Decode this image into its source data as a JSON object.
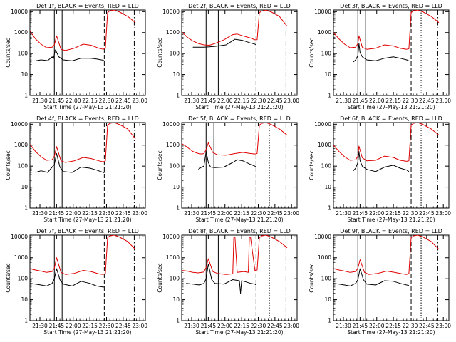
{
  "page": {
    "background": "#ffffff"
  },
  "colors": {
    "events": "#000000",
    "lld": "#e00000",
    "axes": "#000000"
  },
  "shared": {
    "xlabel": "Start Time (27-May-13 21:21:20)",
    "ylabel": "Counts/sec",
    "x_tick_labels": [
      "21:30",
      "21:45",
      "22:00",
      "22:15",
      "22:30",
      "22:45",
      "23:00"
    ],
    "x_ticks_min": [
      9,
      24,
      39,
      54,
      69,
      84,
      99
    ],
    "xlim_min": [
      0,
      104
    ],
    "y_tick_labels": [
      "1",
      "10",
      "100",
      "1000",
      "10000"
    ],
    "y_ticks": [
      1,
      10,
      100,
      1000,
      10000
    ],
    "ylim": [
      1,
      12000
    ],
    "y_scale": "log"
  },
  "chart_data": [
    {
      "type": "line",
      "title": "Det 1f, BLACK = Events, RED = LLD",
      "vlines": [
        {
          "x": 22,
          "style": "solid"
        },
        {
          "x": 29,
          "style": "solid"
        },
        {
          "x": 67,
          "style": "dashed"
        },
        {
          "x": 94,
          "style": "dashdot"
        }
      ],
      "series": [
        {
          "name": "BLACK = Events",
          "color": "#000000",
          "x": [
            5,
            10,
            13,
            16,
            20,
            21,
            23,
            26,
            30,
            38,
            46,
            54,
            60,
            66,
            67,
            69,
            72,
            76,
            81,
            88,
            95
          ],
          "y": [
            45,
            50,
            48,
            46,
            70,
            55,
            150,
            70,
            50,
            45,
            60,
            60,
            55,
            48,
            45,
            null,
            null,
            null,
            null,
            null,
            null
          ]
        },
        {
          "name": "RED = LLD",
          "color": "#e00000",
          "x": [
            0,
            5,
            10,
            15,
            20,
            22,
            24,
            28,
            32,
            40,
            48,
            55,
            62,
            66,
            68,
            70,
            72,
            76,
            81,
            88,
            95
          ],
          "y": [
            1200,
            500,
            280,
            190,
            200,
            260,
            700,
            160,
            140,
            180,
            280,
            250,
            180,
            160,
            180,
            9000,
            11000,
            12000,
            9500,
            6000,
            3000
          ]
        }
      ]
    },
    {
      "type": "line",
      "title": "Det 2f, BLACK = Events, RED = LLD",
      "vlines": [
        {
          "x": 22,
          "style": "solid"
        },
        {
          "x": 33,
          "style": "solid"
        },
        {
          "x": 67,
          "style": "dashed"
        },
        {
          "x": 94,
          "style": "dashdot"
        }
      ],
      "series": [
        {
          "name": "BLACK = Events",
          "color": "#000000",
          "x": [
            10,
            20,
            25,
            30,
            40,
            48,
            55,
            62,
            66,
            67,
            69,
            72,
            76,
            81,
            88,
            95
          ],
          "y": [
            200,
            200,
            210,
            220,
            260,
            480,
            420,
            320,
            280,
            260,
            null,
            null,
            null,
            null,
            null,
            null
          ]
        },
        {
          "name": "RED = LLD",
          "color": "#e00000",
          "x": [
            0,
            5,
            10,
            15,
            20,
            25,
            30,
            38,
            46,
            50,
            55,
            62,
            66,
            68,
            70,
            72,
            76,
            81,
            88,
            95
          ],
          "y": [
            1100,
            600,
            400,
            300,
            260,
            250,
            300,
            450,
            800,
            850,
            700,
            550,
            450,
            460,
            9000,
            10500,
            12000,
            9500,
            6000,
            2000
          ]
        }
      ]
    },
    {
      "type": "line",
      "title": "Det 3f, BLACK = Events, RED = LLD",
      "vlines": [
        {
          "x": 22,
          "style": "solid"
        },
        {
          "x": 29,
          "style": "solid"
        },
        {
          "x": 70,
          "style": "dashed"
        },
        {
          "x": 79,
          "style": "dotted"
        },
        {
          "x": 94,
          "style": "dashdot"
        }
      ],
      "series": [
        {
          "name": "BLACK = Events",
          "color": "#000000",
          "x": [
            18,
            20,
            22,
            23,
            24,
            26,
            30,
            38,
            46,
            54,
            60,
            66,
            68,
            70,
            72,
            76,
            81,
            88,
            95
          ],
          "y": [
            40,
            50,
            80,
            300,
            110,
            70,
            50,
            45,
            60,
            70,
            60,
            50,
            45,
            null,
            null,
            null,
            null,
            null,
            null
          ]
        },
        {
          "name": "RED = LLD",
          "color": "#e00000",
          "x": [
            0,
            5,
            10,
            15,
            20,
            22,
            23,
            26,
            30,
            38,
            46,
            54,
            60,
            66,
            68,
            70,
            72,
            76,
            81,
            88,
            95
          ],
          "y": [
            1000,
            500,
            280,
            190,
            200,
            300,
            700,
            200,
            160,
            180,
            260,
            230,
            180,
            160,
            170,
            9000,
            11000,
            12000,
            9500,
            6000,
            3000
          ]
        }
      ]
    },
    {
      "type": "line",
      "title": "Det 4f, BLACK = Events, RED = LLD",
      "vlines": [
        {
          "x": 22,
          "style": "solid"
        },
        {
          "x": 29,
          "style": "solid"
        },
        {
          "x": 67,
          "style": "dashed"
        },
        {
          "x": 94,
          "style": "dashdot"
        }
      ],
      "series": [
        {
          "name": "BLACK = Events",
          "color": "#000000",
          "x": [
            5,
            10,
            13,
            16,
            20,
            22,
            24,
            27,
            30,
            38,
            46,
            54,
            60,
            66,
            67,
            69,
            72,
            76,
            81,
            88,
            95
          ],
          "y": [
            50,
            60,
            55,
            50,
            90,
            120,
            400,
            90,
            55,
            50,
            90,
            80,
            65,
            50,
            48,
            null,
            null,
            null,
            null,
            null,
            null
          ]
        },
        {
          "name": "RED = LLD",
          "color": "#e00000",
          "x": [
            0,
            5,
            10,
            15,
            20,
            22,
            24,
            28,
            32,
            40,
            48,
            55,
            62,
            66,
            68,
            70,
            72,
            76,
            81,
            88,
            95
          ],
          "y": [
            1100,
            500,
            280,
            190,
            200,
            300,
            850,
            180,
            150,
            180,
            260,
            230,
            180,
            160,
            180,
            9000,
            11000,
            12000,
            9500,
            6000,
            2000
          ]
        }
      ]
    },
    {
      "type": "line",
      "title": "Det 5f, BLACK = Events, RED = LLD",
      "vlines": [
        {
          "x": 22,
          "style": "solid"
        },
        {
          "x": 29,
          "style": "solid"
        },
        {
          "x": 67,
          "style": "dashed"
        },
        {
          "x": 79,
          "style": "dotted"
        },
        {
          "x": 94,
          "style": "dashdot"
        }
      ],
      "series": [
        {
          "name": "BLACK = Events",
          "color": "#000000",
          "x": [
            15,
            18,
            20,
            22,
            24,
            26,
            30,
            38,
            46,
            50,
            55,
            62,
            66,
            67,
            69,
            72,
            76,
            81,
            88,
            95
          ],
          "y": [
            70,
            90,
            100,
            500,
            150,
            90,
            85,
            90,
            150,
            200,
            180,
            120,
            100,
            90,
            null,
            null,
            null,
            null,
            null,
            null
          ]
        },
        {
          "name": "RED = LLD",
          "color": "#e00000",
          "x": [
            0,
            5,
            10,
            15,
            18,
            20,
            22,
            24,
            28,
            32,
            40,
            48,
            55,
            62,
            66,
            68,
            70,
            72,
            76,
            81,
            88,
            95
          ],
          "y": [
            1200,
            800,
            500,
            400,
            380,
            400,
            600,
            1300,
            450,
            350,
            330,
            400,
            450,
            400,
            380,
            400,
            9000,
            11000,
            12000,
            9500,
            6000,
            3000
          ]
        }
      ]
    },
    {
      "type": "line",
      "title": "Det 6f, BLACK = Events, RED = LLD",
      "vlines": [
        {
          "x": 22,
          "style": "solid"
        },
        {
          "x": 29,
          "style": "solid"
        },
        {
          "x": 70,
          "style": "dashed"
        },
        {
          "x": 79,
          "style": "dotted"
        },
        {
          "x": 94,
          "style": "dashdot"
        }
      ],
      "series": [
        {
          "name": "BLACK = Events",
          "color": "#000000",
          "x": [
            18,
            20,
            22,
            23,
            24,
            26,
            30,
            38,
            46,
            54,
            60,
            66,
            68,
            70,
            72,
            76,
            81,
            88,
            95
          ],
          "y": [
            60,
            80,
            150,
            500,
            180,
            100,
            70,
            55,
            90,
            110,
            80,
            65,
            55,
            null,
            null,
            null,
            null,
            null,
            null
          ]
        },
        {
          "name": "RED = LLD",
          "color": "#e00000",
          "x": [
            0,
            5,
            10,
            15,
            20,
            22,
            23,
            26,
            30,
            38,
            46,
            54,
            60,
            66,
            68,
            70,
            72,
            76,
            81,
            88,
            95
          ],
          "y": [
            1000,
            500,
            280,
            190,
            200,
            300,
            900,
            250,
            180,
            190,
            300,
            260,
            190,
            170,
            180,
            9000,
            11000,
            12000,
            9500,
            6000,
            3000
          ]
        }
      ]
    },
    {
      "type": "line",
      "title": "Det 7f, BLACK = Events, RED = LLD",
      "vlines": [
        {
          "x": 22,
          "style": "solid"
        },
        {
          "x": 29,
          "style": "solid"
        },
        {
          "x": 67,
          "style": "dashed"
        },
        {
          "x": 94,
          "style": "dashdot"
        }
      ],
      "series": [
        {
          "name": "BLACK = Events",
          "color": "#000000",
          "x": [
            0,
            5,
            10,
            15,
            20,
            22,
            24,
            27,
            30,
            38,
            46,
            54,
            60,
            66,
            67,
            69,
            72,
            76,
            81,
            88,
            95
          ],
          "y": [
            60,
            55,
            50,
            45,
            60,
            100,
            300,
            90,
            55,
            45,
            75,
            60,
            45,
            40,
            40,
            null,
            null,
            null,
            null,
            null,
            null
          ]
        },
        {
          "name": "RED = LLD",
          "color": "#e00000",
          "x": [
            0,
            5,
            10,
            15,
            20,
            22,
            24,
            28,
            32,
            40,
            48,
            55,
            62,
            66,
            68,
            70,
            72,
            76,
            81,
            88,
            95
          ],
          "y": [
            300,
            260,
            230,
            200,
            220,
            320,
            1000,
            200,
            160,
            180,
            250,
            220,
            170,
            160,
            180,
            9000,
            11000,
            12000,
            9500,
            6000,
            2500
          ]
        }
      ]
    },
    {
      "type": "line",
      "title": "Det 8f, BLACK = Events, RED = LLD",
      "vlines": [
        {
          "x": 22,
          "style": "solid"
        },
        {
          "x": 33,
          "style": "solid"
        },
        {
          "x": 67,
          "style": "dashed"
        },
        {
          "x": 79,
          "style": "dotted"
        },
        {
          "x": 94,
          "style": "dashdot"
        }
      ],
      "series": [
        {
          "name": "BLACK = Events",
          "color": "#000000",
          "x": [
            4,
            10,
            16,
            20,
            22,
            24,
            27,
            30,
            38,
            46,
            52,
            53,
            54,
            58,
            62,
            66,
            67,
            69,
            72,
            76,
            81,
            88,
            95
          ],
          "y": [
            60,
            55,
            50,
            60,
            100,
            500,
            90,
            60,
            55,
            90,
            80,
            20,
            80,
            70,
            60,
            55,
            50,
            null,
            null,
            null,
            null,
            null,
            null
          ]
        },
        {
          "name": "RED = LLD",
          "color": "#e00000",
          "x": [
            0,
            5,
            10,
            15,
            20,
            22,
            24,
            28,
            32,
            40,
            46,
            47,
            48,
            50,
            56,
            60,
            61,
            62,
            66,
            68,
            70,
            72,
            76,
            81,
            88,
            95
          ],
          "y": [
            250,
            230,
            200,
            190,
            210,
            350,
            900,
            220,
            180,
            160,
            170,
            9500,
            9500,
            200,
            220,
            200,
            9500,
            9500,
            250,
            260,
            9000,
            11000,
            12000,
            9500,
            6000,
            3000
          ]
        }
      ]
    },
    {
      "type": "line",
      "title": "Det 9f, BLACK = Events, RED = LLD",
      "vlines": [
        {
          "x": 22,
          "style": "solid"
        },
        {
          "x": 29,
          "style": "solid"
        },
        {
          "x": 70,
          "style": "dashed"
        },
        {
          "x": 79,
          "style": "dotted"
        },
        {
          "x": 94,
          "style": "dashdot"
        }
      ],
      "series": [
        {
          "name": "BLACK = Events",
          "color": "#000000",
          "x": [
            0,
            5,
            10,
            15,
            20,
            22,
            24,
            27,
            30,
            38,
            46,
            54,
            60,
            66,
            68,
            70,
            72,
            76,
            81,
            88,
            95
          ],
          "y": [
            60,
            55,
            50,
            45,
            60,
            90,
            300,
            90,
            55,
            50,
            80,
            75,
            60,
            50,
            48,
            null,
            null,
            null,
            null,
            null,
            null
          ]
        },
        {
          "name": "RED = LLD",
          "color": "#e00000",
          "x": [
            0,
            5,
            10,
            15,
            20,
            22,
            24,
            28,
            32,
            40,
            48,
            55,
            62,
            66,
            68,
            70,
            72,
            76,
            81,
            88,
            95
          ],
          "y": [
            300,
            260,
            230,
            200,
            220,
            320,
            800,
            200,
            160,
            180,
            230,
            200,
            170,
            160,
            180,
            9000,
            11000,
            12000,
            9500,
            6000,
            2500
          ]
        }
      ]
    }
  ]
}
